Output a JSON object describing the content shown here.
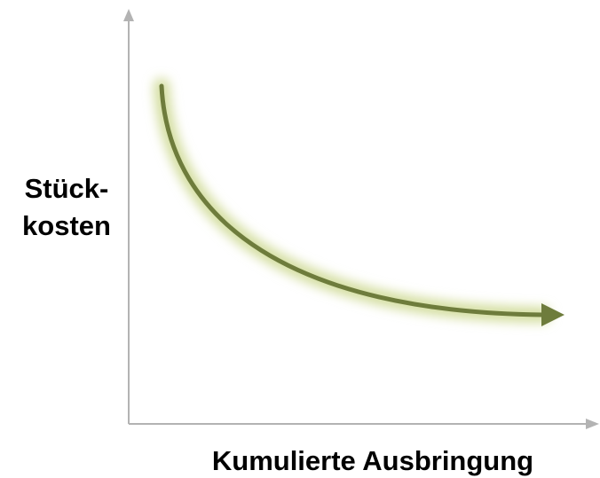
{
  "y_axis_label": [
    "Stück-",
    "kosten"
  ],
  "x_axis_label": "Kumulierte Ausbringung"
}
